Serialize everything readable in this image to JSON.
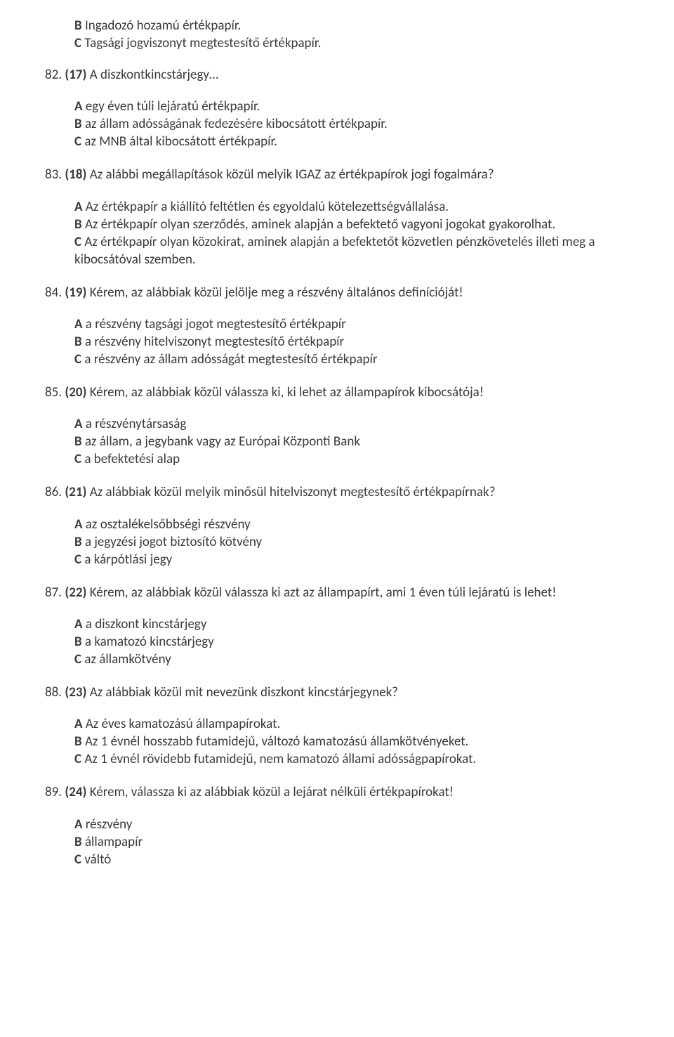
{
  "leadOptions": [
    {
      "letter": "B",
      "text": "Ingadozó hozamú értékpapír."
    },
    {
      "letter": "C",
      "text": "Tagsági jogviszonyt megtestesítő értékpapír."
    }
  ],
  "questions": [
    {
      "num": "82.",
      "ref": "(17)",
      "text": "A diszkontkincstárjegy…",
      "gapBeforeOptions": true,
      "options": [
        {
          "letter": "A",
          "text": "egy éven túli lejáratú értékpapír."
        },
        {
          "letter": "B",
          "text": "az állam adósságának fedezésére kibocsátott értékpapír."
        },
        {
          "letter": "C",
          "text": "az MNB által kibocsátott értékpapír."
        }
      ]
    },
    {
      "num": "83.",
      "ref": "(18)",
      "text": "Az alábbi megállapítások közül melyik IGAZ az értékpapírok jogi fogalmára?",
      "gapBeforeOptions": true,
      "options": [
        {
          "letter": "A",
          "text": "Az értékpapír a kiállító feltétlen és egyoldalú kötelezettségvállalása."
        },
        {
          "letter": "B",
          "text": "Az értékpapír olyan szerződés, aminek alapján a befektető vagyoni jogokat gyakorolhat."
        },
        {
          "letter": "C",
          "text": "Az értékpapír olyan közokirat, aminek alapján a befektetőt közvetlen pénzkövetelés illeti meg a kibocsátóval szemben."
        }
      ]
    },
    {
      "num": "84.",
      "ref": "(19)",
      "text": "Kérem, az alábbiak közül jelölje meg a részvény általános definícióját!",
      "gapBeforeOptions": true,
      "options": [
        {
          "letter": "A",
          "text": "a részvény tagsági jogot megtestesítő értékpapír"
        },
        {
          "letter": "B",
          "text": "a részvény hitelviszonyt megtestesítő értékpapír"
        },
        {
          "letter": "C",
          "text": "a részvény az állam adósságát megtestesítő értékpapír"
        }
      ]
    },
    {
      "num": "85.",
      "ref": "(20)",
      "text": "Kérem, az alábbiak közül válassza ki, ki lehet az állampapírok kibocsátója!",
      "gapBeforeOptions": true,
      "options": [
        {
          "letter": "A",
          "text": "a részvénytársaság"
        },
        {
          "letter": "B",
          "text": "az állam, a jegybank vagy az Európai Központi Bank"
        },
        {
          "letter": "C",
          "text": "a befektetési alap"
        }
      ]
    },
    {
      "num": "86.",
      "ref": "(21)",
      "text": "Az alábbiak közül melyik minősül hitelviszonyt megtestesítő értékpapírnak?",
      "gapBeforeOptions": true,
      "options": [
        {
          "letter": "A",
          "text": "az osztalékelsőbbségi részvény"
        },
        {
          "letter": "B",
          "text": "a jegyzési jogot biztosító kötvény"
        },
        {
          "letter": "C",
          "text": "a kárpótlási jegy"
        }
      ]
    },
    {
      "num": "87.",
      "ref": "(22)",
      "text": "Kérem, az alábbiak közül válassza ki azt az állampapírt, ami 1 éven túli lejáratú is lehet!",
      "gapBeforeOptions": true,
      "options": [
        {
          "letter": "A",
          "text": "a diszkont kincstárjegy"
        },
        {
          "letter": "B",
          "text": "a kamatozó kincstárjegy"
        },
        {
          "letter": "C",
          "text": "az államkötvény"
        }
      ]
    },
    {
      "num": "88.",
      "ref": "(23)",
      "text": "Az alábbiak közül mit nevezünk diszkont kincstárjegynek?",
      "gapBeforeOptions": true,
      "options": [
        {
          "letter": "A",
          "text": "Az éves kamatozású állampapírokat."
        },
        {
          "letter": "B",
          "text": "Az 1 évnél hosszabb futamidejű, változó kamatozású államkötvényeket."
        },
        {
          "letter": "C",
          "text": "Az 1 évnél rövidebb futamidejű, nem kamatozó állami adósságpapírokat."
        }
      ]
    },
    {
      "num": "89.",
      "ref": "(24)",
      "text": "Kérem, válassza ki az alábbiak közül a lejárat nélküli értékpapírokat!",
      "gapBeforeOptions": true,
      "options": [
        {
          "letter": "A",
          "text": "részvény"
        },
        {
          "letter": "B",
          "text": "állampapír"
        },
        {
          "letter": "C",
          "text": "váltó"
        }
      ]
    }
  ]
}
